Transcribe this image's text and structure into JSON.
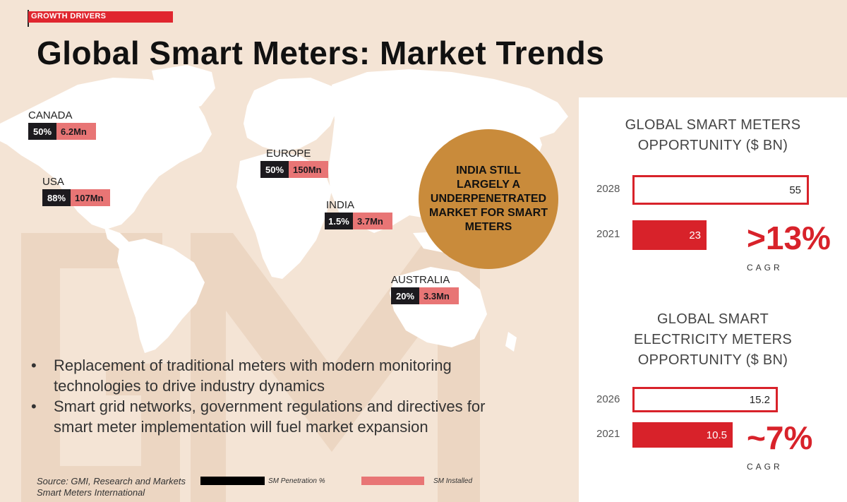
{
  "header": {
    "tag": "GROWTH DRIVERS",
    "title": "Global Smart Meters: Market Trends"
  },
  "regions": [
    {
      "name": "CANADA",
      "penetration": "50%",
      "installed": "6.2Mn"
    },
    {
      "name": "USA",
      "penetration": "88%",
      "installed": "107Mn"
    },
    {
      "name": "EUROPE",
      "penetration": "50%",
      "installed": "150Mn"
    },
    {
      "name": "INDIA",
      "penetration": "1.5%",
      "installed": "3.7Mn"
    },
    {
      "name": "AUSTRALIA",
      "penetration": "20%",
      "installed": "3.3Mn"
    }
  ],
  "india_callout": "INDIA STILL LARGELY A UNDERPENETRATED MARKET FOR SMART METERS",
  "bullets": [
    "Replacement of traditional meters with modern monitoring technologies to drive industry dynamics",
    "Smart grid networks, government regulations and directives for smart meter implementation will fuel market expansion"
  ],
  "source": {
    "line1": "Source: GMI, Research and Markets",
    "line2": "Smart Meters International"
  },
  "legend": {
    "penetration": "SM Penetration %",
    "installed": "SM Installed"
  },
  "colors": {
    "accent": "#d8222a",
    "installed": "#e87575",
    "penetration": "#1c1a1e",
    "circle": "#c98b3b",
    "background": "#f4e4d5"
  },
  "chart_data": [
    {
      "type": "bar",
      "title": "GLOBAL SMART METERS OPPORTUNITY ($ BN)",
      "categories": [
        "2028",
        "2021"
      ],
      "values": [
        55,
        23
      ],
      "value_labels": [
        "55",
        "23"
      ],
      "xlim": [
        0,
        55
      ],
      "cagr": ">13%",
      "cagr_label": "CAGR"
    },
    {
      "type": "bar",
      "title": "GLOBAL SMART ELECTRICITY METERS OPPORTUNITY ($ BN)",
      "categories": [
        "2026",
        "2021"
      ],
      "values": [
        15.2,
        10.5
      ],
      "value_labels": [
        "15.2",
        "10.5"
      ],
      "xlim": [
        0,
        15.2
      ],
      "cagr": "~7%",
      "cagr_label": "CAGR"
    }
  ]
}
